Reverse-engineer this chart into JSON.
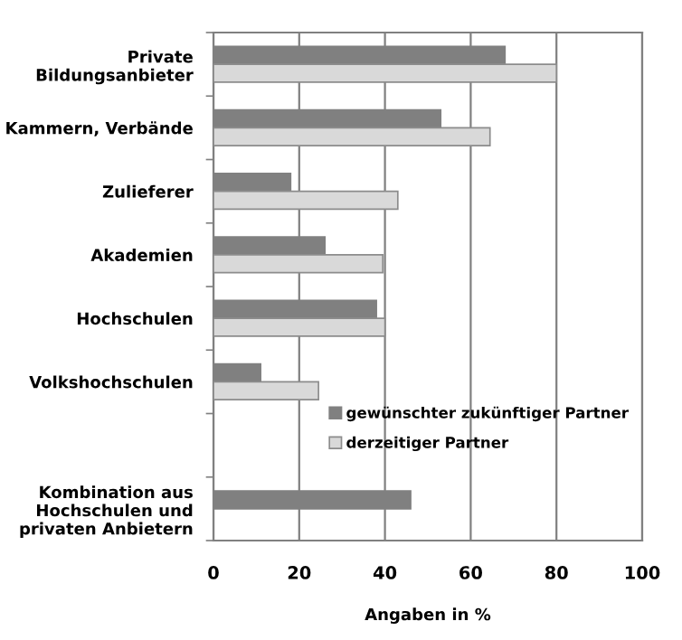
{
  "chart_data": {
    "type": "bar",
    "orientation": "horizontal",
    "xlabel": "Angaben in %",
    "categories": [
      "Private\nBildungsanbieter",
      "Kammern, Verbände",
      "Zulieferer",
      "Akademien",
      "Hochschulen",
      "Volkshochschulen",
      null,
      "Kombination aus\nHochschulen und\nprivaten Anbietern"
    ],
    "series": [
      {
        "name": "gewünschter zukünftiger Partner",
        "color": "#808080",
        "values": [
          68,
          53,
          18,
          26,
          38,
          11,
          null,
          46
        ]
      },
      {
        "name": "derzeitiger Partner",
        "color": "#d9d9d9",
        "values": [
          80,
          64.5,
          43,
          39.5,
          40,
          24.5,
          null,
          null
        ]
      }
    ],
    "xlim": [
      0,
      100
    ],
    "xticks": [
      0,
      20,
      40,
      60,
      80,
      100
    ],
    "grid": "x",
    "legend": "right"
  }
}
